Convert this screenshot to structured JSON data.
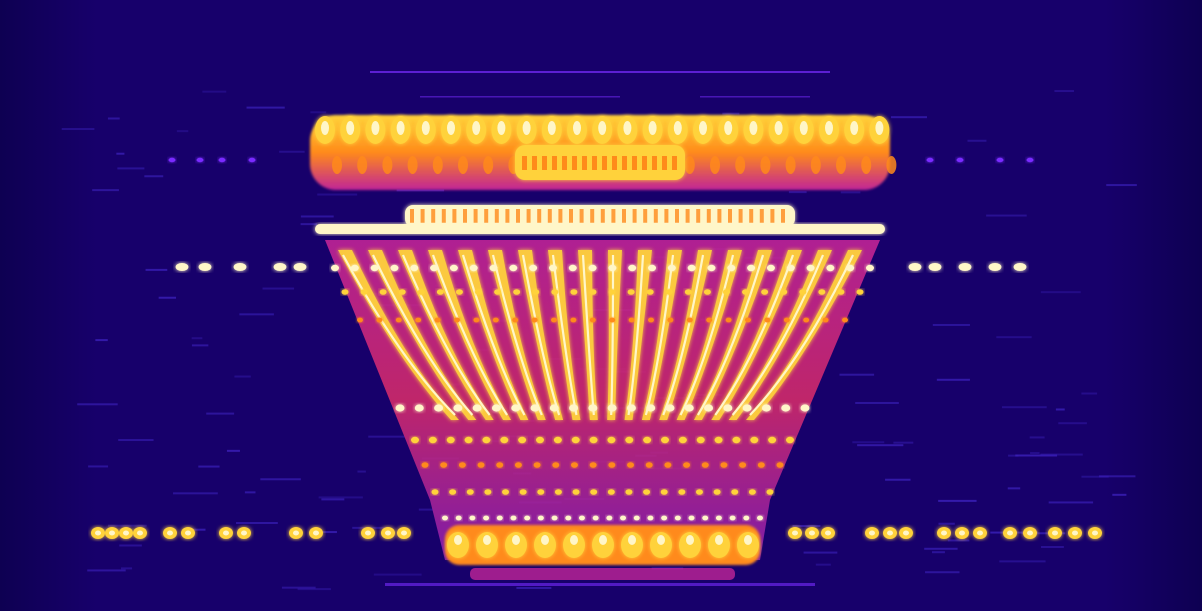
{
  "image": {
    "subject": "vase-spectrogram",
    "palette": {
      "background": "#17006b",
      "background_edge": "#0e0052",
      "faint": "#3a1fb8",
      "violet": "#7a2cff",
      "magenta": "#c02497",
      "red": "#e8394a",
      "orange": "#ff8a1a",
      "yellow": "#ffd23a",
      "white": "#fff6c8"
    }
  }
}
